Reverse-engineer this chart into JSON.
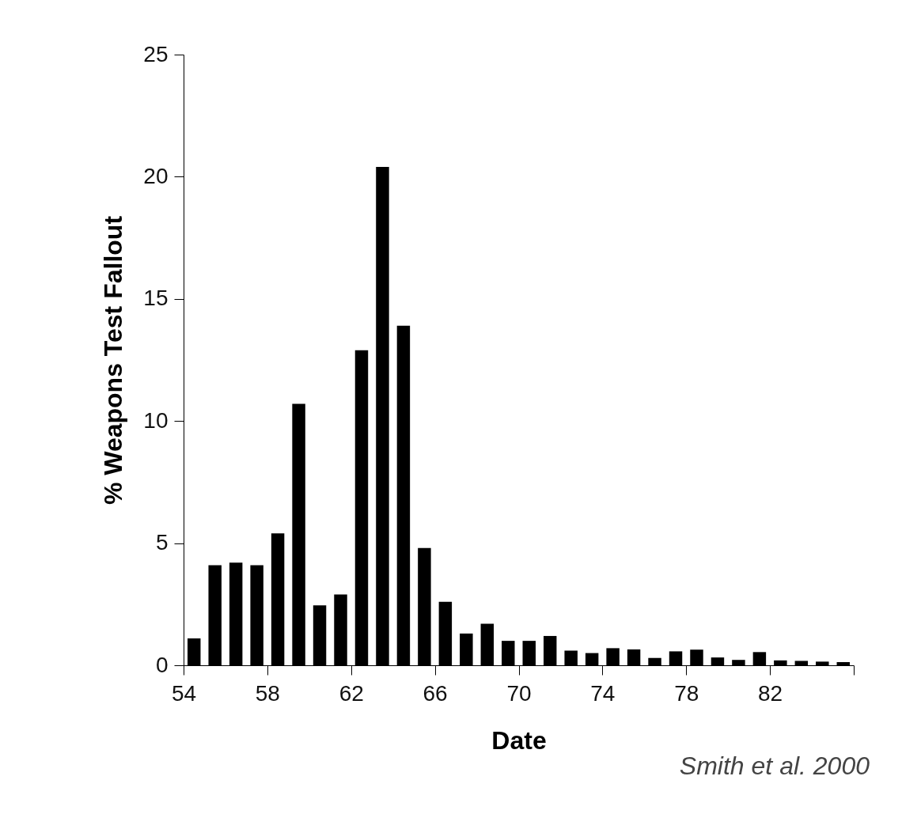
{
  "chart_data": {
    "type": "histogram",
    "bins": [
      54,
      55,
      56,
      57,
      58,
      59,
      60,
      61,
      62,
      63,
      64,
      65,
      66,
      67,
      68,
      69,
      70,
      71,
      72,
      73,
      74,
      75,
      76,
      77,
      78,
      79,
      80,
      81,
      82,
      83,
      84,
      85,
      86
    ],
    "values": [
      1.1,
      4.1,
      4.2,
      4.1,
      5.4,
      10.7,
      2.45,
      2.9,
      12.9,
      20.4,
      13.9,
      4.8,
      2.6,
      1.3,
      1.7,
      1.0,
      1.0,
      1.2,
      0.6,
      0.5,
      0.7,
      0.65,
      0.3,
      0.57,
      0.64,
      0.32,
      0.22,
      0.54,
      0.2,
      0.18,
      0.15,
      0.13
    ],
    "color": "#000000",
    "xlabel": "Date",
    "ylabel": "% Weapons Test Fallout",
    "xlim": [
      54,
      86
    ],
    "xticks": [
      54,
      58,
      62,
      66,
      70,
      74,
      78,
      82,
      {
        "value": 86,
        "label": null
      }
    ],
    "ylim": [
      0,
      25
    ],
    "yticks": [
      0,
      5,
      10,
      15,
      20,
      25
    ],
    "grid": false,
    "annotations": [
      "Smith et al. 2000"
    ]
  }
}
